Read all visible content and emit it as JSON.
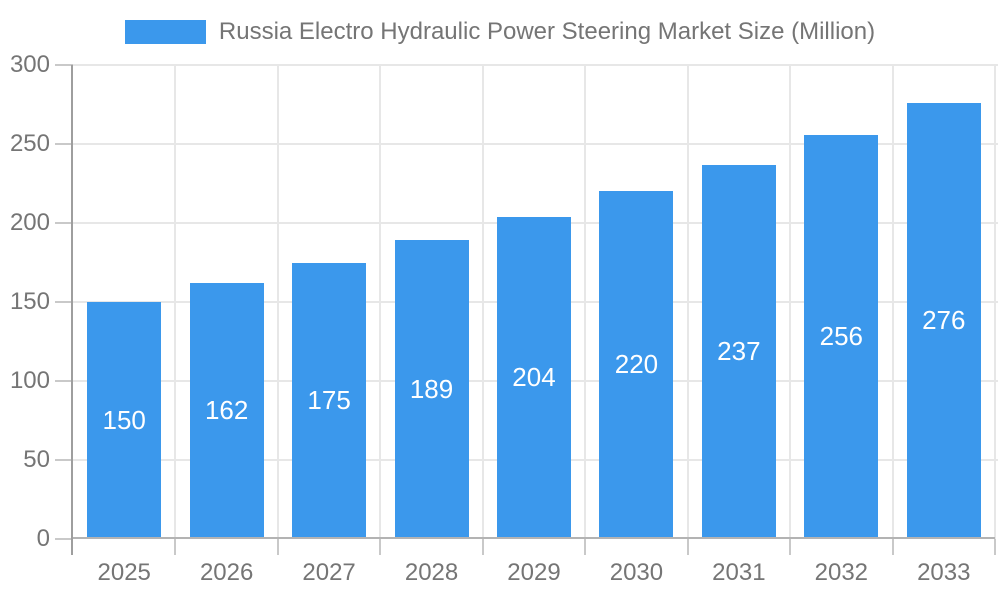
{
  "chart_data": {
    "type": "bar",
    "title": "Russia Electro Hydraulic Power Steering Market Size (Million)",
    "categories": [
      "2025",
      "2026",
      "2027",
      "2028",
      "2029",
      "2030",
      "2031",
      "2032",
      "2033"
    ],
    "values": [
      150,
      162,
      175,
      189,
      204,
      220,
      237,
      256,
      276
    ],
    "xlabel": "",
    "ylabel": "",
    "ylim": [
      0,
      300
    ],
    "yticks": [
      0,
      50,
      100,
      150,
      200,
      250,
      300
    ],
    "grid": true,
    "legend_position": "top",
    "value_labels": "inside-center",
    "colors": {
      "bar": "#3B98EC",
      "value_label": "#FFFFFF",
      "axis_text": "#757575",
      "legend_text": "#757575",
      "gridline": "#E7E7E7",
      "tick": "#C9C9C9",
      "y_axis_line": "#9E9E9E",
      "x_axis_line": "#B3B3B3",
      "background": "#FFFFFF"
    }
  }
}
